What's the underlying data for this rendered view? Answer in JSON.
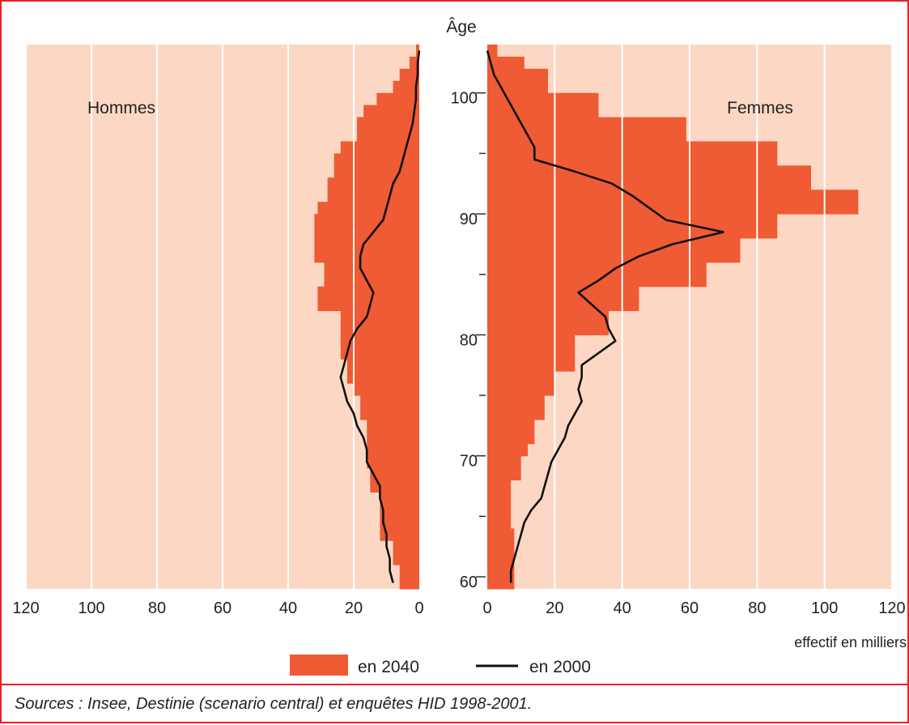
{
  "chart_data": {
    "type": "bar",
    "subtype": "population-pyramid",
    "y_axis_label": "Âge",
    "x_axis_label": "effectif en milliers",
    "y_ticks": [
      60,
      70,
      80,
      90,
      100
    ],
    "x_ticks": [
      0,
      20,
      40,
      60,
      80,
      100,
      120
    ],
    "x_tick_labels": [
      "0",
      "20",
      "40",
      "60",
      "80",
      "100",
      "120"
    ],
    "y_tick_labels": [
      "60",
      "70",
      "80",
      "90",
      "100"
    ],
    "xlim": [
      0,
      120
    ],
    "ylim": [
      59,
      104
    ],
    "grid": true,
    "panel_colors": {
      "background": "#fcd8c4",
      "bar": "#ef5b34",
      "line": "#111111",
      "grid": "#ffffff"
    },
    "hommes": {
      "label": "Hommes",
      "ages": [
        59,
        60,
        61,
        62,
        63,
        64,
        65,
        66,
        67,
        68,
        69,
        70,
        71,
        72,
        73,
        74,
        75,
        76,
        77,
        78,
        79,
        80,
        81,
        82,
        83,
        84,
        85,
        86,
        87,
        88,
        89,
        90,
        91,
        92,
        93,
        94,
        95,
        96,
        97,
        98,
        99,
        100,
        101,
        102,
        103
      ],
      "en_2040": [
        6,
        6,
        8,
        8,
        12,
        12,
        12,
        12,
        15,
        15,
        16,
        16,
        16,
        16,
        18,
        18,
        20,
        22,
        22,
        24,
        24,
        24,
        24,
        31,
        31,
        29,
        29,
        32,
        32,
        32,
        32,
        31,
        28,
        28,
        26,
        26,
        24,
        19,
        19,
        17,
        13,
        8,
        6,
        3,
        1
      ],
      "en_2000": [
        8,
        9,
        9,
        10,
        10,
        11,
        11,
        12,
        12,
        14,
        16,
        16,
        17,
        19,
        20,
        22,
        23,
        24,
        23,
        22,
        21,
        19,
        16,
        15,
        14,
        16,
        18,
        18,
        17,
        14,
        11,
        10,
        9,
        8,
        6,
        5,
        4,
        3,
        2,
        1.5,
        1,
        1,
        0.5,
        0.5,
        0
      ]
    },
    "femmes": {
      "label": "Femmes",
      "ages": [
        59,
        60,
        61,
        62,
        63,
        64,
        65,
        66,
        67,
        68,
        69,
        70,
        71,
        72,
        73,
        74,
        75,
        76,
        77,
        78,
        79,
        80,
        81,
        82,
        83,
        84,
        85,
        86,
        87,
        88,
        89,
        90,
        91,
        92,
        93,
        94,
        95,
        96,
        97,
        98,
        99,
        100,
        101,
        102,
        103
      ],
      "en_2040": [
        8,
        8,
        8,
        8,
        8,
        7,
        7,
        7,
        7,
        10,
        10,
        12,
        14,
        14,
        17,
        17,
        20,
        20,
        26,
        26,
        26,
        36,
        36,
        45,
        45,
        65,
        65,
        75,
        75,
        86,
        86,
        110,
        110,
        96,
        96,
        86,
        86,
        59,
        59,
        33,
        33,
        18,
        18,
        11,
        3
      ],
      "en_2000": [
        7,
        7,
        8,
        9,
        10,
        11,
        13,
        16,
        17,
        18,
        19,
        21,
        23,
        24,
        26,
        28,
        27,
        28,
        28,
        33,
        38,
        36,
        35,
        31,
        27,
        33,
        38,
        45,
        55,
        70,
        53,
        48,
        43,
        37,
        26,
        14,
        14,
        12,
        10,
        8,
        6,
        4,
        2,
        1,
        0
      ]
    },
    "legend": [
      {
        "label": "en 2040",
        "type": "bar"
      },
      {
        "label": "en 2000",
        "type": "line"
      }
    ],
    "source": "Sources : Insee, Destinie (scenario central) et enquêtes HID 1998-2001."
  }
}
